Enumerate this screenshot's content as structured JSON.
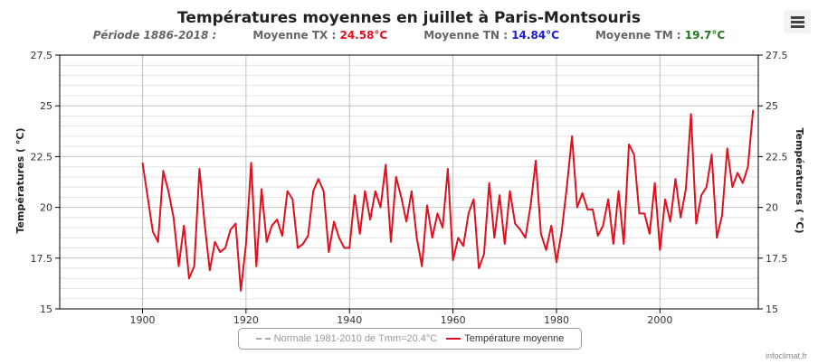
{
  "header": {
    "title": "Températures moyennes en juillet à Paris-Montsouris",
    "period": "Période 1886-2018 :",
    "tx_label": "Moyenne TX :",
    "tx_value": "24.58°C",
    "tx_color": "#e0101e",
    "tn_label": "Moyenne TN :",
    "tn_value": "14.84°C",
    "tn_color": "#1a1ad6",
    "tm_label": "Moyenne TM :",
    "tm_value": "19.7°C",
    "tm_color": "#1f7a1f",
    "menu_icon": "hamburger-menu-icon"
  },
  "legend": {
    "normal_label": "Normale 1981-2010 de Tmm=20.4°C",
    "series_label": "Température moyenne"
  },
  "credit": "infoclimat.fr",
  "chart_data": {
    "type": "line",
    "title": "Températures moyennes en juillet à Paris-Montsouris",
    "ylabel_left": "Températures ( °C)",
    "ylabel_right": "Températures ( °C)",
    "xlim": [
      1884,
      2019
    ],
    "ylim": [
      15,
      27.5
    ],
    "x_ticks": [
      1900,
      1920,
      1940,
      1960,
      1980,
      2000
    ],
    "y_ticks": [
      15,
      17.5,
      20,
      22.5,
      25,
      27.5
    ],
    "y_tick_labels": [
      "15",
      "17.5",
      "20",
      "22.5",
      "25",
      "27.5"
    ],
    "grid": true,
    "legend_position": "bottom-center",
    "series": [
      {
        "name": "Température moyenne",
        "color": "#e0101e",
        "x": [
          1900,
          1901,
          1902,
          1903,
          1904,
          1905,
          1906,
          1907,
          1908,
          1909,
          1910,
          1911,
          1912,
          1913,
          1914,
          1915,
          1916,
          1917,
          1918,
          1919,
          1920,
          1921,
          1922,
          1923,
          1924,
          1925,
          1926,
          1927,
          1928,
          1929,
          1930,
          1931,
          1932,
          1933,
          1934,
          1935,
          1936,
          1937,
          1938,
          1939,
          1940,
          1941,
          1942,
          1943,
          1944,
          1945,
          1946,
          1947,
          1948,
          1949,
          1950,
          1951,
          1952,
          1953,
          1954,
          1955,
          1956,
          1957,
          1958,
          1959,
          1960,
          1961,
          1962,
          1963,
          1964,
          1965,
          1966,
          1967,
          1968,
          1969,
          1970,
          1971,
          1972,
          1973,
          1974,
          1975,
          1976,
          1977,
          1978,
          1979,
          1980,
          1981,
          1982,
          1983,
          1984,
          1985,
          1986,
          1987,
          1988,
          1989,
          1990,
          1991,
          1992,
          1993,
          1994,
          1995,
          1996,
          1997,
          1998,
          1999,
          2000,
          2001,
          2002,
          2003,
          2004,
          2005,
          2006,
          2007,
          2008,
          2009,
          2010,
          2011,
          2012,
          2013,
          2014,
          2015,
          2016,
          2017,
          2018
        ],
        "values": [
          22.2,
          20.5,
          18.8,
          18.3,
          21.8,
          20.8,
          19.5,
          17.1,
          19.1,
          16.5,
          17.1,
          21.9,
          19.2,
          16.9,
          18.3,
          17.8,
          18,
          18.9,
          19.2,
          15.9,
          18.2,
          22.2,
          17.1,
          20.9,
          18.3,
          19.1,
          19.4,
          18.6,
          20.8,
          20.4,
          18,
          18.2,
          18.6,
          20.8,
          21.4,
          20.8,
          17.8,
          19.3,
          18.5,
          18,
          18,
          20.6,
          18.7,
          20.8,
          19.4,
          20.8,
          20,
          22.1,
          18.3,
          21.5,
          20.5,
          19.3,
          20.8,
          18.5,
          17.1,
          20.1,
          18.5,
          19.7,
          19,
          21.9,
          17.4,
          18.5,
          18.1,
          19.7,
          20.4,
          17,
          17.7,
          21.2,
          18.5,
          20.6,
          18.2,
          20.8,
          19.2,
          18.9,
          18.5,
          20.1,
          22.3,
          18.7,
          17.9,
          19.1,
          17.3,
          18.8,
          21,
          23.5,
          20,
          20.7,
          19.9,
          19.9,
          18.6,
          19.1,
          20.4,
          18.2,
          20.8,
          18.2,
          23.1,
          22.6,
          19.7,
          19.7,
          18.7,
          21.2,
          17.9,
          20.4,
          19.3,
          21.4,
          19.5,
          20.9,
          24.6,
          19.2,
          20.6,
          21,
          22.6,
          18.5,
          19.6,
          22.9,
          21,
          21.7,
          21.2,
          22,
          24.8
        ]
      },
      {
        "name": "Normale 1981-2010 de Tmm=20.4°C",
        "visible": false
      }
    ]
  }
}
